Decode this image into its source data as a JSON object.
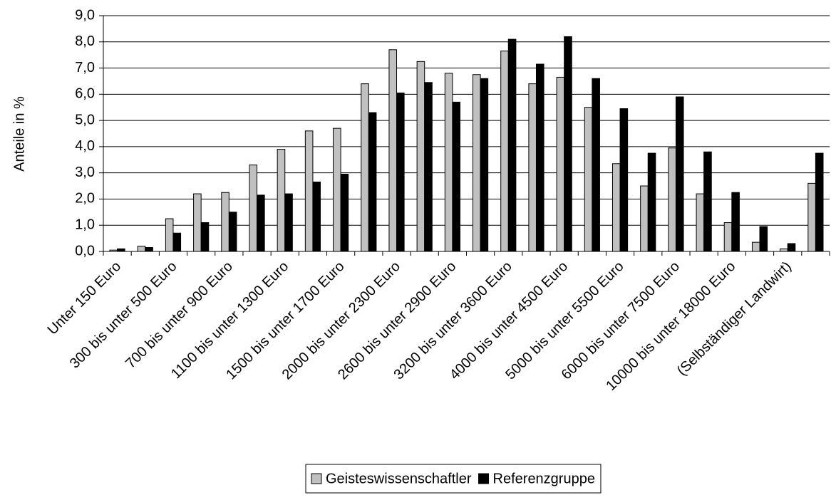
{
  "chart_data": {
    "type": "bar",
    "y_label": "Anteile in %",
    "categories": [
      "Unter 150 Euro",
      null,
      "300 bis unter 500 Euro",
      null,
      "700 bis unter 900 Euro",
      null,
      "1100 bis unter 1300 Euro",
      null,
      "1500 bis unter 1700 Euro",
      null,
      "2000 bis unter 2300 Euro",
      null,
      "2600 bis unter 2900 Euro",
      null,
      "3200 bis unter 3600 Euro",
      null,
      "4000 bis unter 4500 Euro",
      null,
      "5000 bis unter 5500 Euro",
      null,
      "6000 bis unter 7500 Euro",
      null,
      "10000 bis unter 18000 Euro",
      null,
      "(Selbständiger Landwirt)",
      null
    ],
    "series": [
      {
        "name": "Geisteswissenschaftler",
        "color": "#c0c0c0",
        "values": [
          0.05,
          0.2,
          1.25,
          2.2,
          2.25,
          3.3,
          3.9,
          4.6,
          4.7,
          6.4,
          7.7,
          7.25,
          6.8,
          6.75,
          7.65,
          6.4,
          6.65,
          5.5,
          3.35,
          2.5,
          3.95,
          2.2,
          1.1,
          0.35,
          0.1,
          2.6
        ]
      },
      {
        "name": "Referenzgruppe",
        "color": "#000000",
        "values": [
          0.1,
          0.15,
          0.7,
          1.1,
          1.5,
          2.15,
          2.2,
          2.65,
          2.95,
          5.3,
          6.05,
          6.45,
          5.7,
          6.6,
          8.1,
          7.15,
          8.2,
          6.6,
          5.45,
          3.75,
          5.9,
          3.8,
          2.25,
          0.95,
          0.3,
          3.75
        ]
      }
    ],
    "ylim": [
      0,
      9
    ],
    "yticks": [
      {
        "value": 0,
        "label": "0,0"
      },
      {
        "value": 1,
        "label": "1,0"
      },
      {
        "value": 2,
        "label": "2,0"
      },
      {
        "value": 3,
        "label": "3,0"
      },
      {
        "value": 4,
        "label": "4,0"
      },
      {
        "value": 5,
        "label": "5,0"
      },
      {
        "value": 6,
        "label": "6,0"
      },
      {
        "value": 7,
        "label": "7,0"
      },
      {
        "value": 8,
        "label": "8,0"
      },
      {
        "value": 9,
        "label": "9,0"
      }
    ],
    "grid": true,
    "legend": "bottom"
  }
}
